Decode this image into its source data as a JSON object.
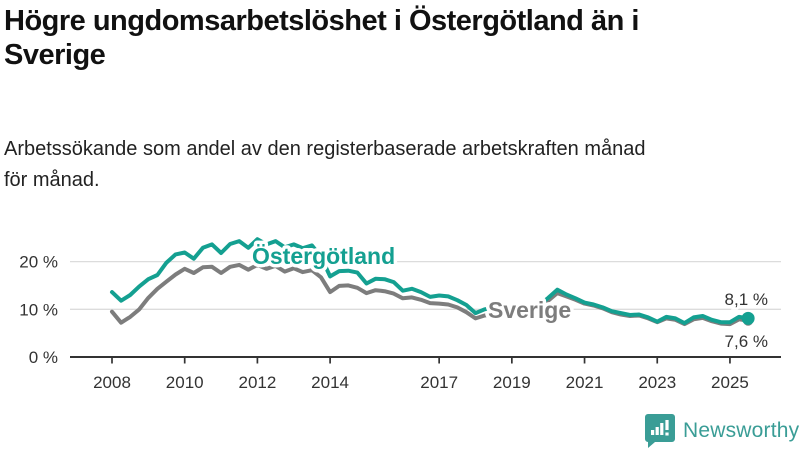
{
  "header": {
    "title_line1": "Högre ungdomsarbetslöshet i Östergötland än i",
    "title_line2": "Sverige",
    "subtitle_line1": "Arbetssökande som andel av den registerbaserade arbetskraften månad",
    "subtitle_line2": "för månad."
  },
  "chart_data": {
    "type": "line",
    "title": "Högre ungdomsarbetslöshet i Östergötland än i Sverige",
    "xlabel": "",
    "ylabel": "",
    "unit": "%",
    "x_start": 2008,
    "x_step": 0.25,
    "x_end": 2025.5,
    "ylim": [
      0,
      27
    ],
    "grid": "horizontal-only",
    "legend_position": "inline-labels",
    "x_ticks": [
      "2008",
      "2010",
      "2012",
      "2014",
      "2017",
      "2019",
      "2021",
      "2023",
      "2025"
    ],
    "x_tick_years": [
      2008,
      2010,
      2012,
      2014,
      2017,
      2019,
      2021,
      2023,
      2025
    ],
    "y_ticks": [
      {
        "value": 0,
        "label": "0 %"
      },
      {
        "value": 10,
        "label": "10 %"
      },
      {
        "value": 20,
        "label": "20 %"
      }
    ],
    "series": [
      {
        "name": "Sverige",
        "color": "#7D7D7D",
        "end_label": "7,6 %",
        "end_value": 7.6,
        "values": [
          9.5,
          7.2,
          8.4,
          10.0,
          12.4,
          14.3,
          15.8,
          17.3,
          18.5,
          17.6,
          18.8,
          18.9,
          17.6,
          18.9,
          19.3,
          18.3,
          19.3,
          18.5,
          19.1,
          17.9,
          18.6,
          17.8,
          18.2,
          16.7,
          13.6,
          14.9,
          15.0,
          14.5,
          13.4,
          14.0,
          13.8,
          13.3,
          12.3,
          12.5,
          12.0,
          11.3,
          11.2,
          11.0,
          10.4,
          9.4,
          8.1,
          8.7,
          8.9,
          8.7,
          8.9,
          9.2,
          9.0,
          9.5,
          11.8,
          13.4,
          12.7,
          12.0,
          11.2,
          10.8,
          10.2,
          9.4,
          8.9,
          8.6,
          8.7,
          8.1,
          7.3,
          8.1,
          7.8,
          6.9,
          7.9,
          8.2,
          7.5,
          7.0,
          6.9,
          7.9,
          7.6
        ]
      },
      {
        "name": "Östergötland",
        "color": "#14A091",
        "end_label": "8,1 %",
        "end_value": 8.1,
        "values": [
          13.6,
          11.8,
          13.0,
          14.8,
          16.3,
          17.2,
          19.8,
          21.5,
          21.9,
          20.6,
          22.9,
          23.6,
          21.8,
          23.7,
          24.3,
          22.9,
          24.7,
          23.6,
          24.3,
          23.0,
          23.6,
          22.8,
          23.4,
          21.0,
          16.9,
          18.0,
          18.1,
          17.7,
          15.4,
          16.4,
          16.3,
          15.7,
          13.9,
          14.3,
          13.6,
          12.6,
          12.9,
          12.7,
          11.9,
          10.9,
          9.2,
          10.0,
          10.3,
          10.0,
          10.2,
          10.6,
          10.3,
          10.9,
          12.4,
          14.1,
          13.1,
          12.3,
          11.4,
          11.0,
          10.4,
          9.6,
          9.2,
          8.8,
          8.9,
          8.3,
          7.4,
          8.4,
          8.1,
          7.1,
          8.3,
          8.6,
          7.8,
          7.3,
          7.3,
          8.4,
          8.1
        ]
      }
    ],
    "colors": {
      "axis": "#333333",
      "gridline": "#DCDCDC",
      "tick_label": "#333333",
      "value_label": "#333333"
    }
  },
  "footer": {
    "brand": "Newsworthy",
    "brand_color": "#3A9D96",
    "logo_icon": "bar-chart-speech-bubble-icon"
  }
}
